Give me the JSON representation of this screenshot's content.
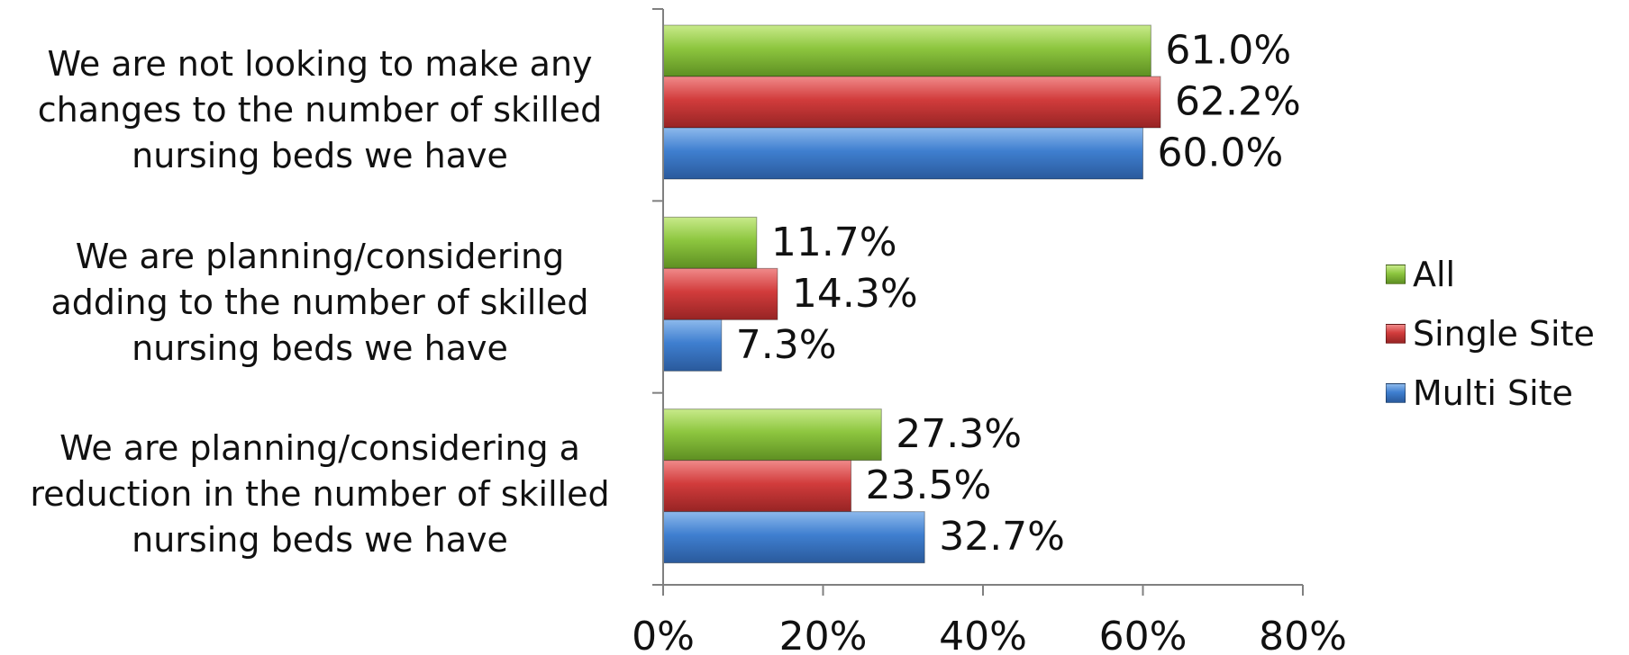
{
  "chart_data": {
    "type": "bar",
    "orientation": "horizontal",
    "categories": [
      "We are not looking to make any changes to the number of skilled nursing beds we have",
      "We are planning/considering adding to the number of skilled nursing beds we have",
      "We are planning/considering a reduction in the number of skilled nursing beds we have"
    ],
    "category_lines": [
      [
        "We are not looking to make any",
        "changes to the number of skilled",
        "nursing beds we have"
      ],
      [
        "We are planning/considering",
        "adding to the number of skilled",
        "nursing beds we have"
      ],
      [
        "We are planning/considering a",
        "reduction in the number of skilled",
        "nursing beds we have"
      ]
    ],
    "series": [
      {
        "name": "All",
        "color": "#8DC63F",
        "values": [
          61.0,
          11.7,
          27.3
        ],
        "labels": [
          "61.0%",
          "11.7%",
          "27.3%"
        ]
      },
      {
        "name": "Single Site",
        "color": "#D23C3C",
        "values": [
          62.2,
          14.3,
          23.5
        ],
        "labels": [
          "62.2%",
          "14.3%",
          "23.5%"
        ]
      },
      {
        "name": "Multi Site",
        "color": "#3F7FD0",
        "values": [
          60.0,
          7.3,
          32.7
        ],
        "labels": [
          "60.0%",
          "7.3%",
          "32.7%"
        ]
      }
    ],
    "xlim": [
      0,
      80
    ],
    "xticks": [
      0,
      20,
      40,
      60,
      80
    ],
    "xtick_labels": [
      "0%",
      "20%",
      "40%",
      "60%",
      "80%"
    ],
    "title": "",
    "xlabel": "",
    "ylabel": "",
    "grid": false,
    "legend_position": "right"
  }
}
